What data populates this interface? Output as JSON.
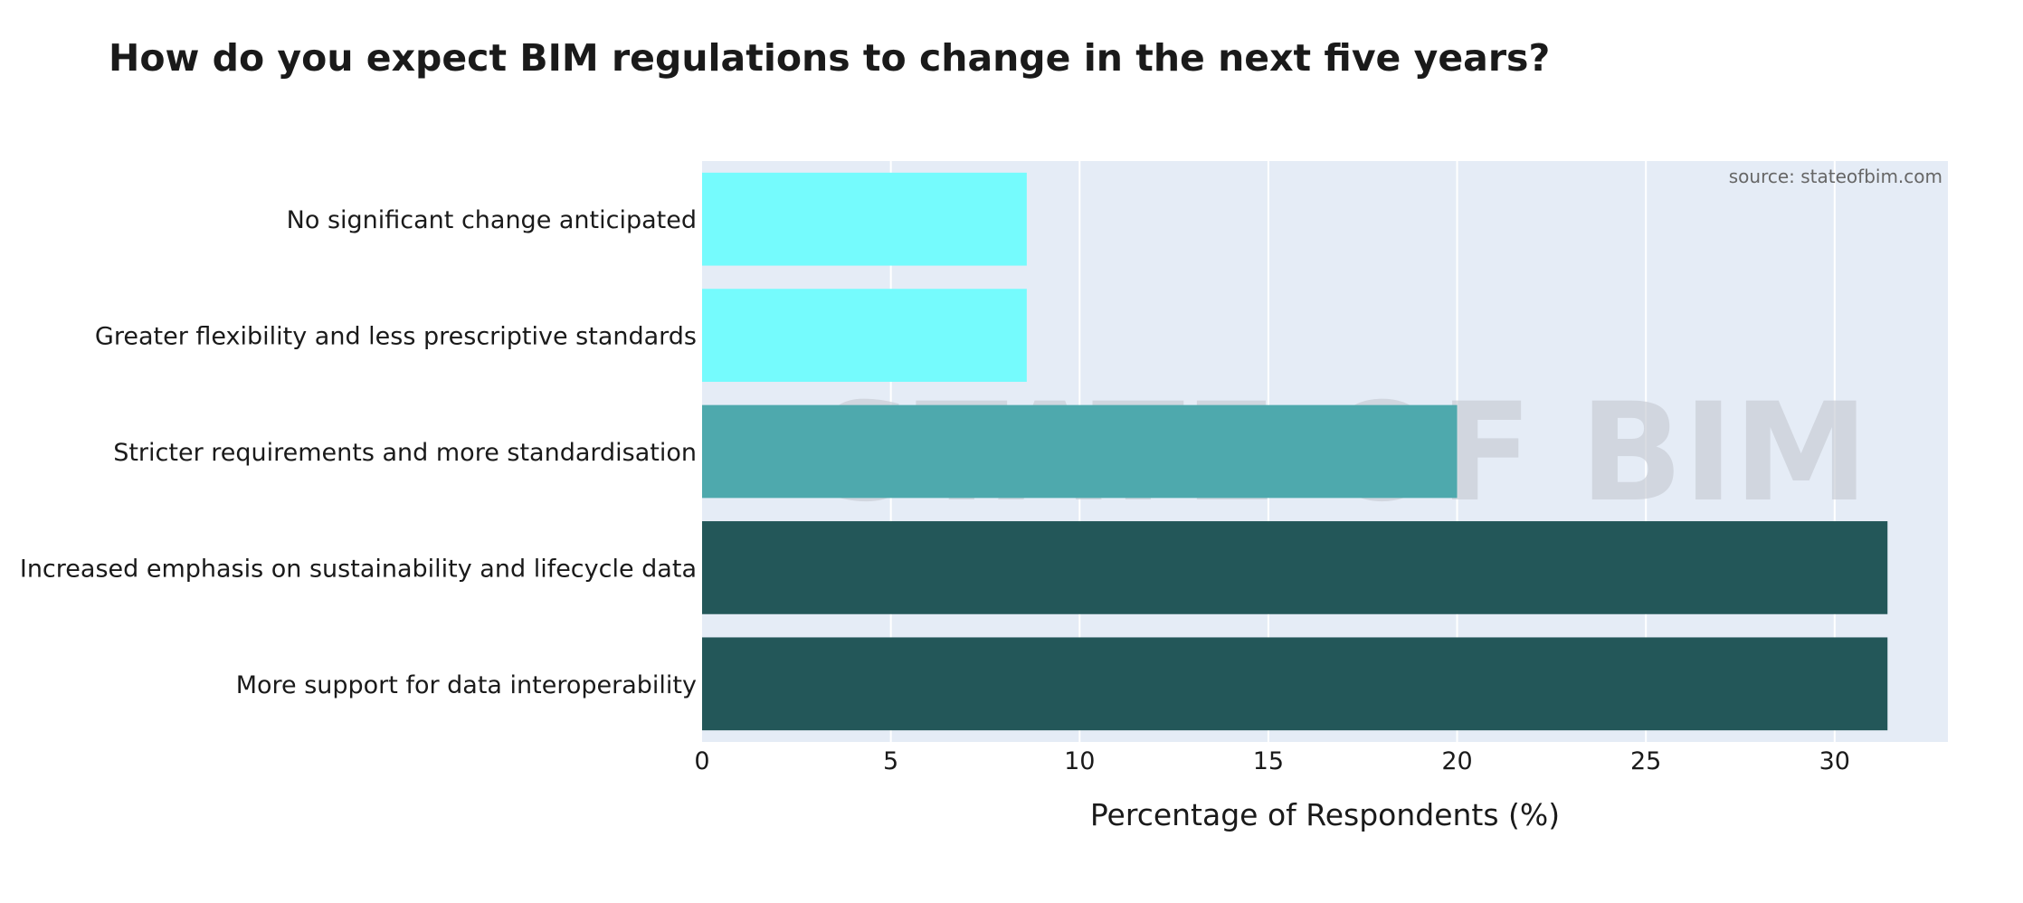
{
  "chart_data": {
    "type": "bar",
    "orientation": "horizontal",
    "title": "How do you expect BIM regulations to change in the next five years?",
    "source": "source: stateofbim.com",
    "watermark": "STATE OF BIM",
    "xlabel": "Percentage of Respondents (%)",
    "ylabel": "",
    "xlim": [
      0,
      33
    ],
    "xticks": [
      0,
      5,
      10,
      15,
      20,
      25,
      30
    ],
    "grid": true,
    "categories": [
      "No significant change anticipated",
      "Greater flexibility and less prescriptive standards",
      "Stricter requirements and more standardisation",
      "Increased emphasis on sustainability and lifecycle data",
      "More support for data interoperability"
    ],
    "values": [
      8.6,
      8.6,
      20.0,
      31.4,
      31.4
    ],
    "colors": [
      "#75fbfd",
      "#75fbfd",
      "#4ea9ad",
      "#235759",
      "#235759"
    ],
    "plot_background": "#e5ecf6",
    "grid_color": "#ffffff"
  }
}
